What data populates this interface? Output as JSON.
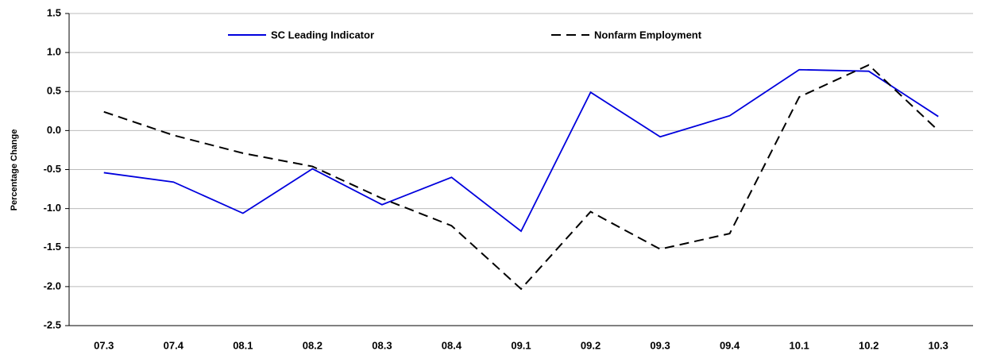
{
  "chart_data": {
    "type": "line",
    "y_label": "Percentage Change",
    "categories": [
      "07.3",
      "07.4",
      "08.1",
      "08.2",
      "08.3",
      "08.4",
      "09.1",
      "09.2",
      "09.3",
      "09.4",
      "10.1",
      "10.2",
      "10.3"
    ],
    "series": [
      {
        "name": "SC Leading Indicator",
        "color": "#0000dd",
        "style": "solid",
        "values": [
          -0.54,
          -0.66,
          -1.06,
          -0.49,
          -0.95,
          -0.6,
          -1.29,
          0.49,
          -0.08,
          0.19,
          0.78,
          0.76,
          0.18
        ]
      },
      {
        "name": "Nonfarm Employment",
        "color": "#000000",
        "style": "dashed",
        "values": [
          0.24,
          -0.06,
          -0.29,
          -0.46,
          -0.87,
          -1.22,
          -2.03,
          -1.04,
          -1.52,
          -1.32,
          0.43,
          0.84,
          0.0
        ]
      }
    ],
    "ylim": [
      -2.5,
      1.5
    ],
    "yticks": [
      1.5,
      {
        "value": 1.0,
        "label": "1.0"
      },
      0.5,
      {
        "value": 0.0,
        "label": "0.0"
      },
      -0.5,
      {
        "value": -1.0,
        "label": "-1.0"
      },
      -1.5,
      {
        "value": -2.0,
        "label": "-2.0"
      },
      -2.5
    ],
    "grid": true,
    "legend": "top"
  }
}
